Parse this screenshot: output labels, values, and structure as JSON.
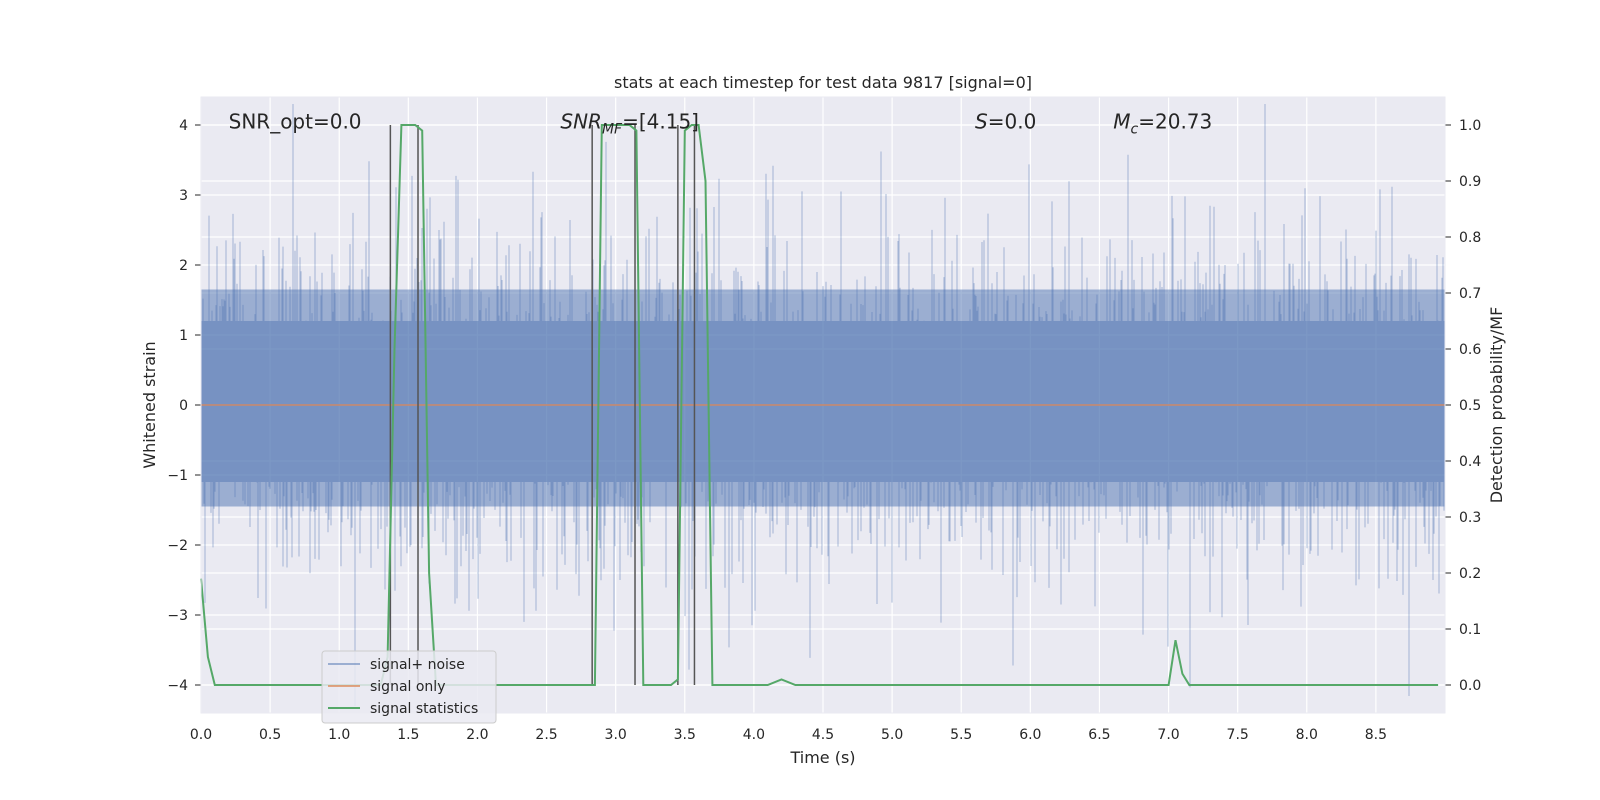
{
  "chart_data": {
    "type": "line",
    "title": "stats at each timestep for test data 9817 [signal=0]",
    "xlabel": "Time (s)",
    "ylabel": "Whitened strain",
    "y2label": "Detection probability/MF",
    "xlim": [
      0.0,
      9.0
    ],
    "ylim": [
      -4.4,
      4.4
    ],
    "y2lim": [
      -0.05,
      1.05
    ],
    "xticks": [
      0.0,
      0.5,
      1.0,
      1.5,
      2.0,
      2.5,
      3.0,
      3.5,
      4.0,
      4.5,
      5.0,
      5.5,
      6.0,
      6.5,
      7.0,
      7.5,
      8.0,
      8.5
    ],
    "yticks": [
      -4,
      -3,
      -2,
      -1,
      0,
      1,
      2,
      3,
      4
    ],
    "y2ticks": [
      0.0,
      0.1,
      0.2,
      0.3,
      0.4,
      0.5,
      0.6,
      0.7,
      0.8,
      0.9,
      1.0
    ],
    "grid": true,
    "legend_position": "lower-left",
    "annotations": [
      {
        "id": "snr-opt",
        "x": 0.2,
        "y": 4.05,
        "plain": "SNR_opt=0.0"
      },
      {
        "id": "snr-mf",
        "x": 2.6,
        "y": 4.05,
        "italic": "SNR",
        "sub": "MF",
        "rest": "=[4.15]"
      },
      {
        "id": "s-stat",
        "x": 5.6,
        "y": 4.05,
        "italic": "S",
        "rest": "=0.0"
      },
      {
        "id": "mc",
        "x": 6.6,
        "y": 4.05,
        "italic": "M",
        "sub": "c",
        "rest": "=20.73"
      }
    ],
    "series": [
      {
        "name": "signal+ noise",
        "color": "#4c72b0",
        "kind": "noise-band",
        "core_low": -1.45,
        "core_high": 1.65,
        "noise_stats": {
          "sigma": 1.0
        }
      },
      {
        "name": "signal only",
        "color": "#dd8452",
        "x": [
          0.0,
          9.0
        ],
        "y": [
          0.0,
          0.0
        ]
      },
      {
        "name": "signal statistics",
        "color": "#55a868",
        "axis": "right",
        "x": [
          0.0,
          0.05,
          0.1,
          0.15,
          0.2,
          0.3,
          0.4,
          0.5,
          0.6,
          0.7,
          0.8,
          0.9,
          1.0,
          1.1,
          1.2,
          1.3,
          1.35,
          1.4,
          1.45,
          1.5,
          1.55,
          1.6,
          1.65,
          1.7,
          2.0,
          2.5,
          2.75,
          2.8,
          2.85,
          2.9,
          3.0,
          3.1,
          3.15,
          3.2,
          3.3,
          3.4,
          3.45,
          3.5,
          3.55,
          3.6,
          3.65,
          3.7,
          4.0,
          4.1,
          4.2,
          4.3,
          4.5,
          5.0,
          5.5,
          6.0,
          6.5,
          6.9,
          6.95,
          7.0,
          7.05,
          7.1,
          7.15,
          7.2,
          7.5,
          8.0,
          8.5,
          8.95
        ],
        "y": [
          0.19,
          0.05,
          0.0,
          0.0,
          0.0,
          0.0,
          0.0,
          0.0,
          0.0,
          0.0,
          0.0,
          0.0,
          0.0,
          0.0,
          0.0,
          0.0,
          0.05,
          0.6,
          1.0,
          1.0,
          1.0,
          0.99,
          0.2,
          0.0,
          0.0,
          0.0,
          0.0,
          0.0,
          0.0,
          1.0,
          1.0,
          1.0,
          0.99,
          0.0,
          0.0,
          0.0,
          0.01,
          0.99,
          1.0,
          1.0,
          0.9,
          0.0,
          0.0,
          0.0,
          0.01,
          0.0,
          0.0,
          0.0,
          0.0,
          0.0,
          0.0,
          0.0,
          0.0,
          0.0,
          0.08,
          0.02,
          0.0,
          0.0,
          0.0,
          0.0,
          0.0,
          0.0
        ]
      }
    ],
    "vlines": [
      {
        "x": 1.37,
        "ymin": 0.0,
        "ymax": 1.0
      },
      {
        "x": 1.57,
        "ymin": 0.0,
        "ymax": 1.0
      },
      {
        "x": 2.83,
        "ymin": 0.0,
        "ymax": 1.0
      },
      {
        "x": 3.14,
        "ymin": 0.0,
        "ymax": 1.0
      },
      {
        "x": 3.45,
        "ymin": 0.0,
        "ymax": 1.0
      },
      {
        "x": 3.57,
        "ymin": 0.0,
        "ymax": 1.0
      }
    ]
  }
}
